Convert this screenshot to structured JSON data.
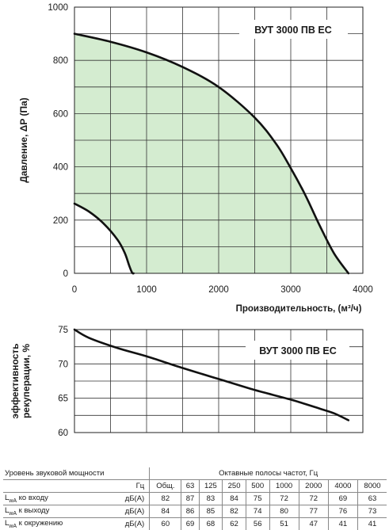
{
  "chart_data": [
    {
      "type": "area",
      "title": "ВУТ 3000 ПВ ЕС",
      "xlabel": "Производительность, (м³/ч)",
      "ylabel": "Давление, ΔP (Па)",
      "xlim": [
        0,
        4000
      ],
      "ylim": [
        0,
        1000
      ],
      "x_ticks": [
        "0",
        "1000",
        "2000",
        "3000",
        "4000"
      ],
      "y_ticks": [
        "0",
        "200",
        "400",
        "600",
        "800",
        "1000"
      ],
      "grid": true,
      "fill_color": "#d4ecd0",
      "series": [
        {
          "role": "upper-curve",
          "x": [
            0,
            500,
            1000,
            1500,
            2000,
            2500,
            2800,
            3000,
            3200,
            3400,
            3600,
            3800
          ],
          "y": [
            900,
            870,
            830,
            775,
            700,
            585,
            485,
            395,
            295,
            180,
            75,
            0
          ]
        },
        {
          "role": "lower-curve",
          "x": [
            0,
            200,
            400,
            600,
            700,
            760,
            800,
            820
          ],
          "y": [
            262,
            232,
            188,
            125,
            75,
            28,
            2,
            0
          ]
        }
      ]
    },
    {
      "type": "line",
      "title": "ВУТ 3000 ПВ ЕС",
      "ylabel": "эффективность рекуперации, %",
      "xlim": [
        0,
        4000
      ],
      "ylim": [
        60,
        75
      ],
      "y_ticks": [
        "60",
        "65",
        "70",
        "75"
      ],
      "grid": true,
      "series": [
        {
          "x": [
            0,
            200,
            600,
            1000,
            1500,
            2000,
            2500,
            3000,
            3400,
            3600,
            3800
          ],
          "y": [
            75,
            73.8,
            72.3,
            71.1,
            69.4,
            67.8,
            66.2,
            64.8,
            63.5,
            62.8,
            61.8
          ]
        }
      ]
    }
  ],
  "sound_table": {
    "title": "Уровень звуковой мощности",
    "bands_title": "Октавные полосы частот, Гц",
    "freq_unit": "Гц",
    "columns": [
      "Общ.",
      "63",
      "125",
      "250",
      "500",
      "1000",
      "2000",
      "4000",
      "8000"
    ],
    "rows": [
      {
        "label_main": "L",
        "label_sub": "wA",
        "label_rest": " ко входу",
        "unit": "дБ(А)",
        "values": [
          "82",
          "87",
          "83",
          "84",
          "75",
          "72",
          "72",
          "69",
          "63"
        ]
      },
      {
        "label_main": "L",
        "label_sub": "wA",
        "label_rest": " к выходу",
        "unit": "дБ(А)",
        "values": [
          "84",
          "86",
          "85",
          "82",
          "74",
          "80",
          "77",
          "76",
          "73"
        ]
      },
      {
        "label_main": "L",
        "label_sub": "wA",
        "label_rest": " к окружению",
        "unit": "дБ(А)",
        "values": [
          "60",
          "69",
          "68",
          "62",
          "56",
          "51",
          "47",
          "41",
          "41"
        ]
      }
    ]
  }
}
